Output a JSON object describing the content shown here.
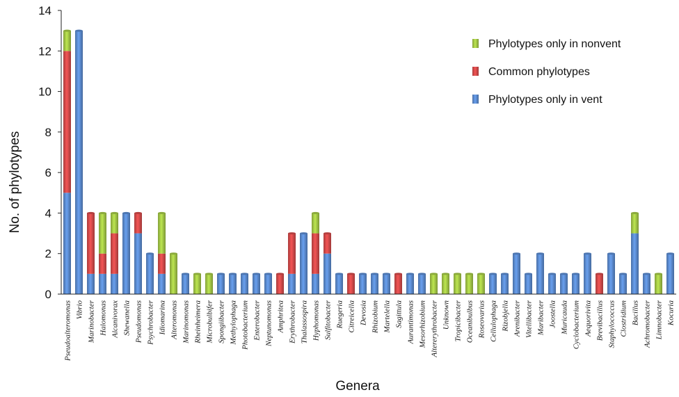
{
  "chart_data": {
    "type": "bar",
    "stacked": true,
    "title": "",
    "xlabel": "Genera",
    "ylabel": "No. of phylotypes",
    "ylim": [
      0,
      14
    ],
    "yticks": [
      0,
      2,
      4,
      6,
      8,
      10,
      12,
      14
    ],
    "grid": false,
    "legend_position": "top-right",
    "categories": [
      "Pseudoalteromonas",
      "Vibrio",
      "Marinobacter",
      "Halomonas",
      "Alcanivorax",
      "Shewanella",
      "Pseudomonas",
      "Psychrobacter",
      "Idiomarina",
      "Alteromonas",
      "Marinomonas",
      "Rheinheimera",
      "Microbulbifer",
      "Spongiibacter",
      "Methylophaga",
      "Photobacterium",
      "Enterobacter",
      "Neptunomonas",
      "Amphritea",
      "Erythrobacter",
      "Thalassospira",
      "Hyphomonas",
      "Sulfitobacter",
      "Ruegeria",
      "Citreicella",
      "Devosia",
      "Rhizobium",
      "Martelella",
      "Sagittula",
      "Aurantimonas",
      "Mesorhizobium",
      "Altererythrobacter",
      "Unknown",
      "Tropicibacter",
      "Oceanibulbus",
      "Roseovarius",
      "Cellulophaga",
      "Rizobjella",
      "Arenibacter",
      "Vitellibacter",
      "Maribacter",
      "Joostella",
      "Muricauda",
      "Cyclobacterium",
      "Aequorivita",
      "Brevibacillus",
      "Staphylococcus",
      "Clostridium",
      "Bacillus",
      "Achromobacter",
      "Limnobacter",
      "Kocuria"
    ],
    "series": [
      {
        "name": "Phylotypes only in vent",
        "color": "#5b8bd0",
        "values": [
          5,
          13,
          1,
          1,
          1,
          4,
          3,
          2,
          1,
          0,
          1,
          0,
          0,
          1,
          1,
          1,
          1,
          1,
          0,
          1,
          3,
          1,
          2,
          1,
          0,
          1,
          1,
          1,
          0,
          1,
          1,
          0,
          0,
          0,
          0,
          0,
          1,
          1,
          2,
          1,
          2,
          1,
          1,
          1,
          2,
          0,
          2,
          1,
          3,
          1,
          0,
          2
        ]
      },
      {
        "name": "Common phylotypes",
        "color": "#d44a4a",
        "values": [
          7,
          0,
          3,
          1,
          2,
          0,
          1,
          0,
          1,
          0,
          0,
          0,
          0,
          0,
          0,
          0,
          0,
          0,
          1,
          2,
          0,
          2,
          1,
          0,
          1,
          0,
          0,
          0,
          1,
          0,
          0,
          0,
          0,
          0,
          0,
          0,
          0,
          0,
          0,
          0,
          0,
          0,
          0,
          0,
          0,
          1,
          0,
          0,
          0,
          0,
          0,
          0
        ]
      },
      {
        "name": "Phylotypes only in nonvent",
        "color": "#a4c846",
        "values": [
          1,
          0,
          0,
          2,
          1,
          0,
          0,
          0,
          2,
          2,
          0,
          1,
          1,
          0,
          0,
          0,
          0,
          0,
          0,
          0,
          0,
          1,
          0,
          0,
          0,
          0,
          0,
          0,
          0,
          0,
          0,
          1,
          1,
          1,
          1,
          1,
          0,
          0,
          0,
          0,
          0,
          0,
          0,
          0,
          0,
          0,
          0,
          0,
          1,
          0,
          1,
          0
        ]
      }
    ],
    "legend_order": [
      "Phylotypes only in nonvent",
      "Common phylotypes",
      "Phylotypes only in vent"
    ]
  }
}
